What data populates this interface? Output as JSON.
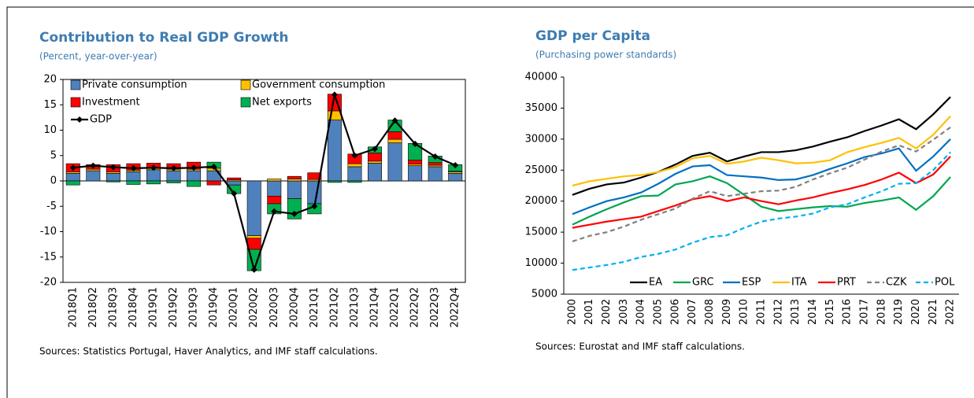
{
  "chart_data": [
    {
      "type": "bar",
      "stacked": true,
      "title": "Contribution to Real GDP Growth",
      "subtitle": "(Percent, year-over-year)",
      "note": "Sources: Statistics Portugal, Haver Analytics, and IMF staff calculations.",
      "categories": [
        "2018Q1",
        "2018Q2",
        "2018Q3",
        "2018Q4",
        "2019Q1",
        "2019Q2",
        "2019Q3",
        "2019Q4",
        "2020Q1",
        "2020Q2",
        "2020Q3",
        "2020Q4",
        "2021Q1",
        "2021Q2",
        "2021Q3",
        "2021Q4",
        "2022Q1",
        "2022Q2",
        "2022Q3",
        "2022Q4"
      ],
      "series": [
        {
          "name": "Private consumption",
          "color": "#4f81bd",
          "values": [
            1.5,
            2.0,
            1.5,
            1.8,
            2.2,
            2.0,
            2.0,
            2.0,
            -0.8,
            -10.8,
            -3.0,
            -3.5,
            -4.5,
            12.0,
            2.8,
            3.5,
            7.5,
            3.0,
            2.8,
            1.5
          ]
        },
        {
          "name": "Government consumption",
          "color": "#ffc000",
          "values": [
            0.3,
            0.3,
            0.3,
            0.3,
            0.3,
            0.3,
            0.3,
            0.5,
            0.2,
            -0.5,
            0.4,
            0.4,
            0.3,
            1.8,
            0.6,
            0.4,
            0.7,
            0.3,
            0.3,
            0.3
          ]
        },
        {
          "name": "Investment",
          "color": "#ff0000",
          "values": [
            1.6,
            0.8,
            1.4,
            1.3,
            1.0,
            1.1,
            1.4,
            -0.8,
            0.4,
            -2.2,
            -1.5,
            0.5,
            1.3,
            3.3,
            1.9,
            1.6,
            1.5,
            0.8,
            0.5,
            0.1
          ]
        },
        {
          "name": "Net exports",
          "color": "#00b050",
          "values": [
            -0.8,
            0.1,
            -0.2,
            -0.7,
            -0.6,
            -0.4,
            -1.1,
            1.2,
            -1.7,
            -4.2,
            -2.0,
            -4.0,
            -2.0,
            -0.3,
            -0.3,
            1.2,
            2.3,
            3.3,
            1.3,
            1.3
          ]
        },
        {
          "name": "GDP",
          "type": "line",
          "color": "#000000",
          "values": [
            2.6,
            3.0,
            2.7,
            2.5,
            2.6,
            2.5,
            2.6,
            2.8,
            -2.5,
            -17.5,
            -6.0,
            -6.5,
            -5.0,
            17.0,
            5.0,
            6.3,
            11.9,
            7.3,
            4.8,
            3.1
          ]
        }
      ],
      "ylim": [
        -20,
        20
      ],
      "yticks": [
        -20,
        -15,
        -10,
        -5,
        0,
        5,
        10,
        15,
        20
      ],
      "grid": false
    },
    {
      "type": "line",
      "title": "GDP per Capita",
      "subtitle": "(Purchasing power standards)",
      "note": "Sources: Eurostat and IMF staff calculations.",
      "categories": [
        "2000",
        "2001",
        "2002",
        "2003",
        "2004",
        "2005",
        "2006",
        "2007",
        "2008",
        "2009",
        "2010",
        "2011",
        "2012",
        "2013",
        "2014",
        "2015",
        "2016",
        "2017",
        "2018",
        "2019",
        "2020",
        "2021",
        "2022"
      ],
      "series": [
        {
          "name": "EA",
          "color": "#000000",
          "values": [
            21000,
            22000,
            22700,
            23000,
            23800,
            24700,
            25900,
            27300,
            27800,
            26400,
            27200,
            27900,
            27900,
            28200,
            28800,
            29600,
            30300,
            31300,
            32200,
            33200,
            31600,
            34000,
            36800
          ]
        },
        {
          "name": "GRC",
          "color": "#00a651",
          "values": [
            16200,
            17500,
            18700,
            19800,
            20800,
            20900,
            22700,
            23200,
            24000,
            22900,
            21000,
            19100,
            18400,
            18700,
            19000,
            19200,
            19100,
            19700,
            20100,
            20600,
            18600,
            20800,
            23900
          ]
        },
        {
          "name": "ESP",
          "color": "#0070c0",
          "values": [
            17900,
            19000,
            20000,
            20600,
            21400,
            22800,
            24400,
            25600,
            25800,
            24200,
            24000,
            23800,
            23400,
            23500,
            24200,
            25200,
            26100,
            27100,
            27700,
            28500,
            24900,
            27200,
            30000
          ]
        },
        {
          "name": "ITA",
          "color": "#ffc000",
          "values": [
            22500,
            23200,
            23600,
            24000,
            24200,
            24700,
            25500,
            26900,
            27300,
            26000,
            26400,
            27000,
            26600,
            26100,
            26200,
            26600,
            27900,
            28700,
            29400,
            30200,
            28500,
            30700,
            33700
          ]
        },
        {
          "name": "PRT",
          "color": "#ff0000",
          "values": [
            15700,
            16200,
            16700,
            17100,
            17500,
            18400,
            19300,
            20300,
            20800,
            20000,
            20600,
            20000,
            19500,
            20100,
            20600,
            21300,
            21900,
            22600,
            23500,
            24600,
            22900,
            24300,
            27200
          ]
        },
        {
          "name": "CZK",
          "color": "#808080",
          "dashed": true,
          "values": [
            13500,
            14400,
            15000,
            15900,
            17000,
            17900,
            18800,
            20400,
            21600,
            20800,
            21200,
            21600,
            21700,
            22300,
            23500,
            24500,
            25400,
            26700,
            28000,
            29000,
            28000,
            29900,
            31900
          ]
        },
        {
          "name": "POL",
          "color": "#00b0f0",
          "dashed": true,
          "values": [
            8900,
            9300,
            9700,
            10200,
            11000,
            11500,
            12200,
            13300,
            14200,
            14500,
            15700,
            16700,
            17200,
            17500,
            18000,
            19000,
            19500,
            20600,
            21600,
            22800,
            22900,
            25000,
            27900
          ]
        }
      ],
      "ylim": [
        5000,
        40000
      ],
      "yticks": [
        5000,
        10000,
        15000,
        20000,
        25000,
        30000,
        35000,
        40000
      ],
      "grid": false
    }
  ]
}
